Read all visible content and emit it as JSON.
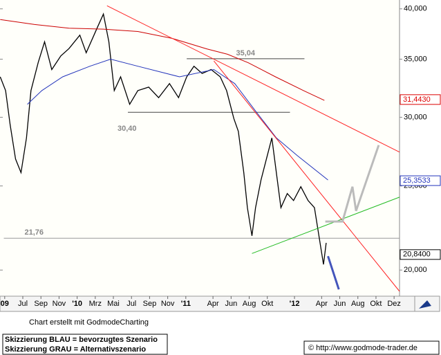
{
  "chart_data": {
    "type": "line",
    "log_scale": true,
    "xlim": [
      3.48,
      47.6
    ],
    "ylim": [
      18660,
      40950
    ],
    "yticks": [
      {
        "value": 40000,
        "label": "40,000"
      },
      {
        "value": 35000,
        "label": "35,000"
      },
      {
        "value": 30000,
        "label": "30,000"
      },
      {
        "value": 25000,
        "label": "25,000"
      },
      {
        "value": 20000,
        "label": "20,000"
      }
    ],
    "xticks": [
      {
        "value": 4,
        "label": "09"
      },
      {
        "value": 6,
        "label": "Jul"
      },
      {
        "value": 8,
        "label": "Sep"
      },
      {
        "value": 10,
        "label": "Nov"
      },
      {
        "value": 12,
        "label": "'10"
      },
      {
        "value": 14,
        "label": "Mrz"
      },
      {
        "value": 16,
        "label": "Mai"
      },
      {
        "value": 18,
        "label": "Jul"
      },
      {
        "value": 20,
        "label": "Sep"
      },
      {
        "value": 22,
        "label": "Nov"
      },
      {
        "value": 24,
        "label": "'11"
      },
      {
        "value": 27,
        "label": "Apr"
      },
      {
        "value": 29,
        "label": "Jun"
      },
      {
        "value": 31,
        "label": "Aug"
      },
      {
        "value": 33,
        "label": "Okt"
      },
      {
        "value": 36,
        "label": "'12"
      },
      {
        "value": 39,
        "label": "Apr"
      },
      {
        "value": 41,
        "label": "Jun"
      },
      {
        "value": 43,
        "label": "Aug"
      },
      {
        "value": 45,
        "label": "Okt"
      },
      {
        "value": 47,
        "label": "Dez"
      }
    ],
    "series": [
      {
        "color": "#000000",
        "x": [
          3.5,
          4.1,
          4.6,
          5.2,
          5.8,
          6.4,
          6.9,
          7.7,
          8.4,
          9.2,
          10.2,
          11.1,
          12.3,
          13.0,
          14.2,
          14.9,
          15.5,
          16.1,
          16.8,
          17.8,
          18.7,
          19.9,
          21.0,
          22.2,
          23.2,
          24.1,
          24.9,
          25.8,
          26.8,
          27.8,
          28.5,
          29.3,
          29.8,
          30.4,
          30.8,
          31.3,
          31.7,
          32.3,
          32.9,
          33.5,
          34.0,
          34.5,
          35.2,
          35.9,
          36.7,
          37.5,
          38.2,
          38.7,
          39.2,
          39.5
        ],
        "values": [
          33400,
          32200,
          29400,
          26850,
          25900,
          28400,
          32200,
          34700,
          36650,
          34050,
          35300,
          36000,
          37300,
          35600,
          38000,
          39450,
          36650,
          32200,
          33400,
          31050,
          32200,
          32500,
          31600,
          32800,
          31600,
          33400,
          34350,
          33700,
          34050,
          33400,
          32200,
          29900,
          28900,
          25900,
          23600,
          21900,
          23600,
          25400,
          26850,
          28400,
          25900,
          23600,
          24500,
          24050,
          24950,
          24050,
          23600,
          21900,
          20300,
          21500
        ]
      },
      {
        "color": "#2233bb",
        "x": [
          6.5,
          8.1,
          10.4,
          13.4,
          15.7,
          18.7,
          23.3,
          27.1,
          29.4,
          31.7,
          34.0,
          36.3,
          39.7
        ],
        "values": [
          31050,
          32200,
          33400,
          34350,
          35000,
          34350,
          33400,
          34050,
          32800,
          30500,
          28400,
          27100,
          25400
        ]
      },
      {
        "color": "#cc0000",
        "x": [
          3.5,
          7.3,
          11.1,
          14.9,
          18.7,
          22.5,
          26.3,
          28.6,
          30.9,
          33.9,
          37.0,
          39.3
        ],
        "values": [
          38880,
          38370,
          38000,
          37900,
          37670,
          36980,
          35970,
          35460,
          34670,
          33400,
          32200,
          31370
        ]
      }
    ],
    "overlays": [
      {
        "color": "#ff2020",
        "x": [
          15.3,
          47.6
        ],
        "values": [
          40330,
          27350
        ]
      },
      {
        "color": "#ff2020",
        "x": [
          27.1,
          47.6
        ],
        "values": [
          34830,
          18900
        ]
      },
      {
        "color": "#22bb22",
        "x": [
          31.3,
          47.6
        ],
        "values": [
          20900,
          24270
        ]
      },
      {
        "color": "#bbbbbb",
        "x": [
          39.4,
          41.3,
          42.4,
          42.8,
          45.3
        ],
        "values": [
          22750,
          22750,
          24950,
          23400,
          27860
        ]
      },
      {
        "color": "#4455bb",
        "x": [
          39.7,
          40.9
        ],
        "values": [
          20750,
          19000
        ]
      }
    ],
    "levels": [
      {
        "value": 35040,
        "label": "35,04",
        "x": [
          24.1,
          37.1
        ]
      },
      {
        "value": 30400,
        "label": "30,40",
        "x": [
          17.6,
          35.5
        ]
      },
      {
        "value": 21760,
        "label": "21,76",
        "x": [
          3.9,
          47.6
        ]
      }
    ],
    "price_tags": [
      {
        "value": 31443,
        "label": "31,4430",
        "color": "#dd0000"
      },
      {
        "value": 25353.3,
        "label": "25,3533",
        "color": "#2233bb"
      },
      {
        "value": 20840,
        "label": "20,8400",
        "color": "#000000"
      }
    ],
    "footer": {
      "credit": "Chart erstellt mit GodmodeCharting",
      "notes": [
        "Skizzierung BLAU = bevorzugtes Szenario",
        "Skizzierung GRAU = Alternativszenario"
      ],
      "url": "© http://www.godmode-trader.de"
    }
  }
}
